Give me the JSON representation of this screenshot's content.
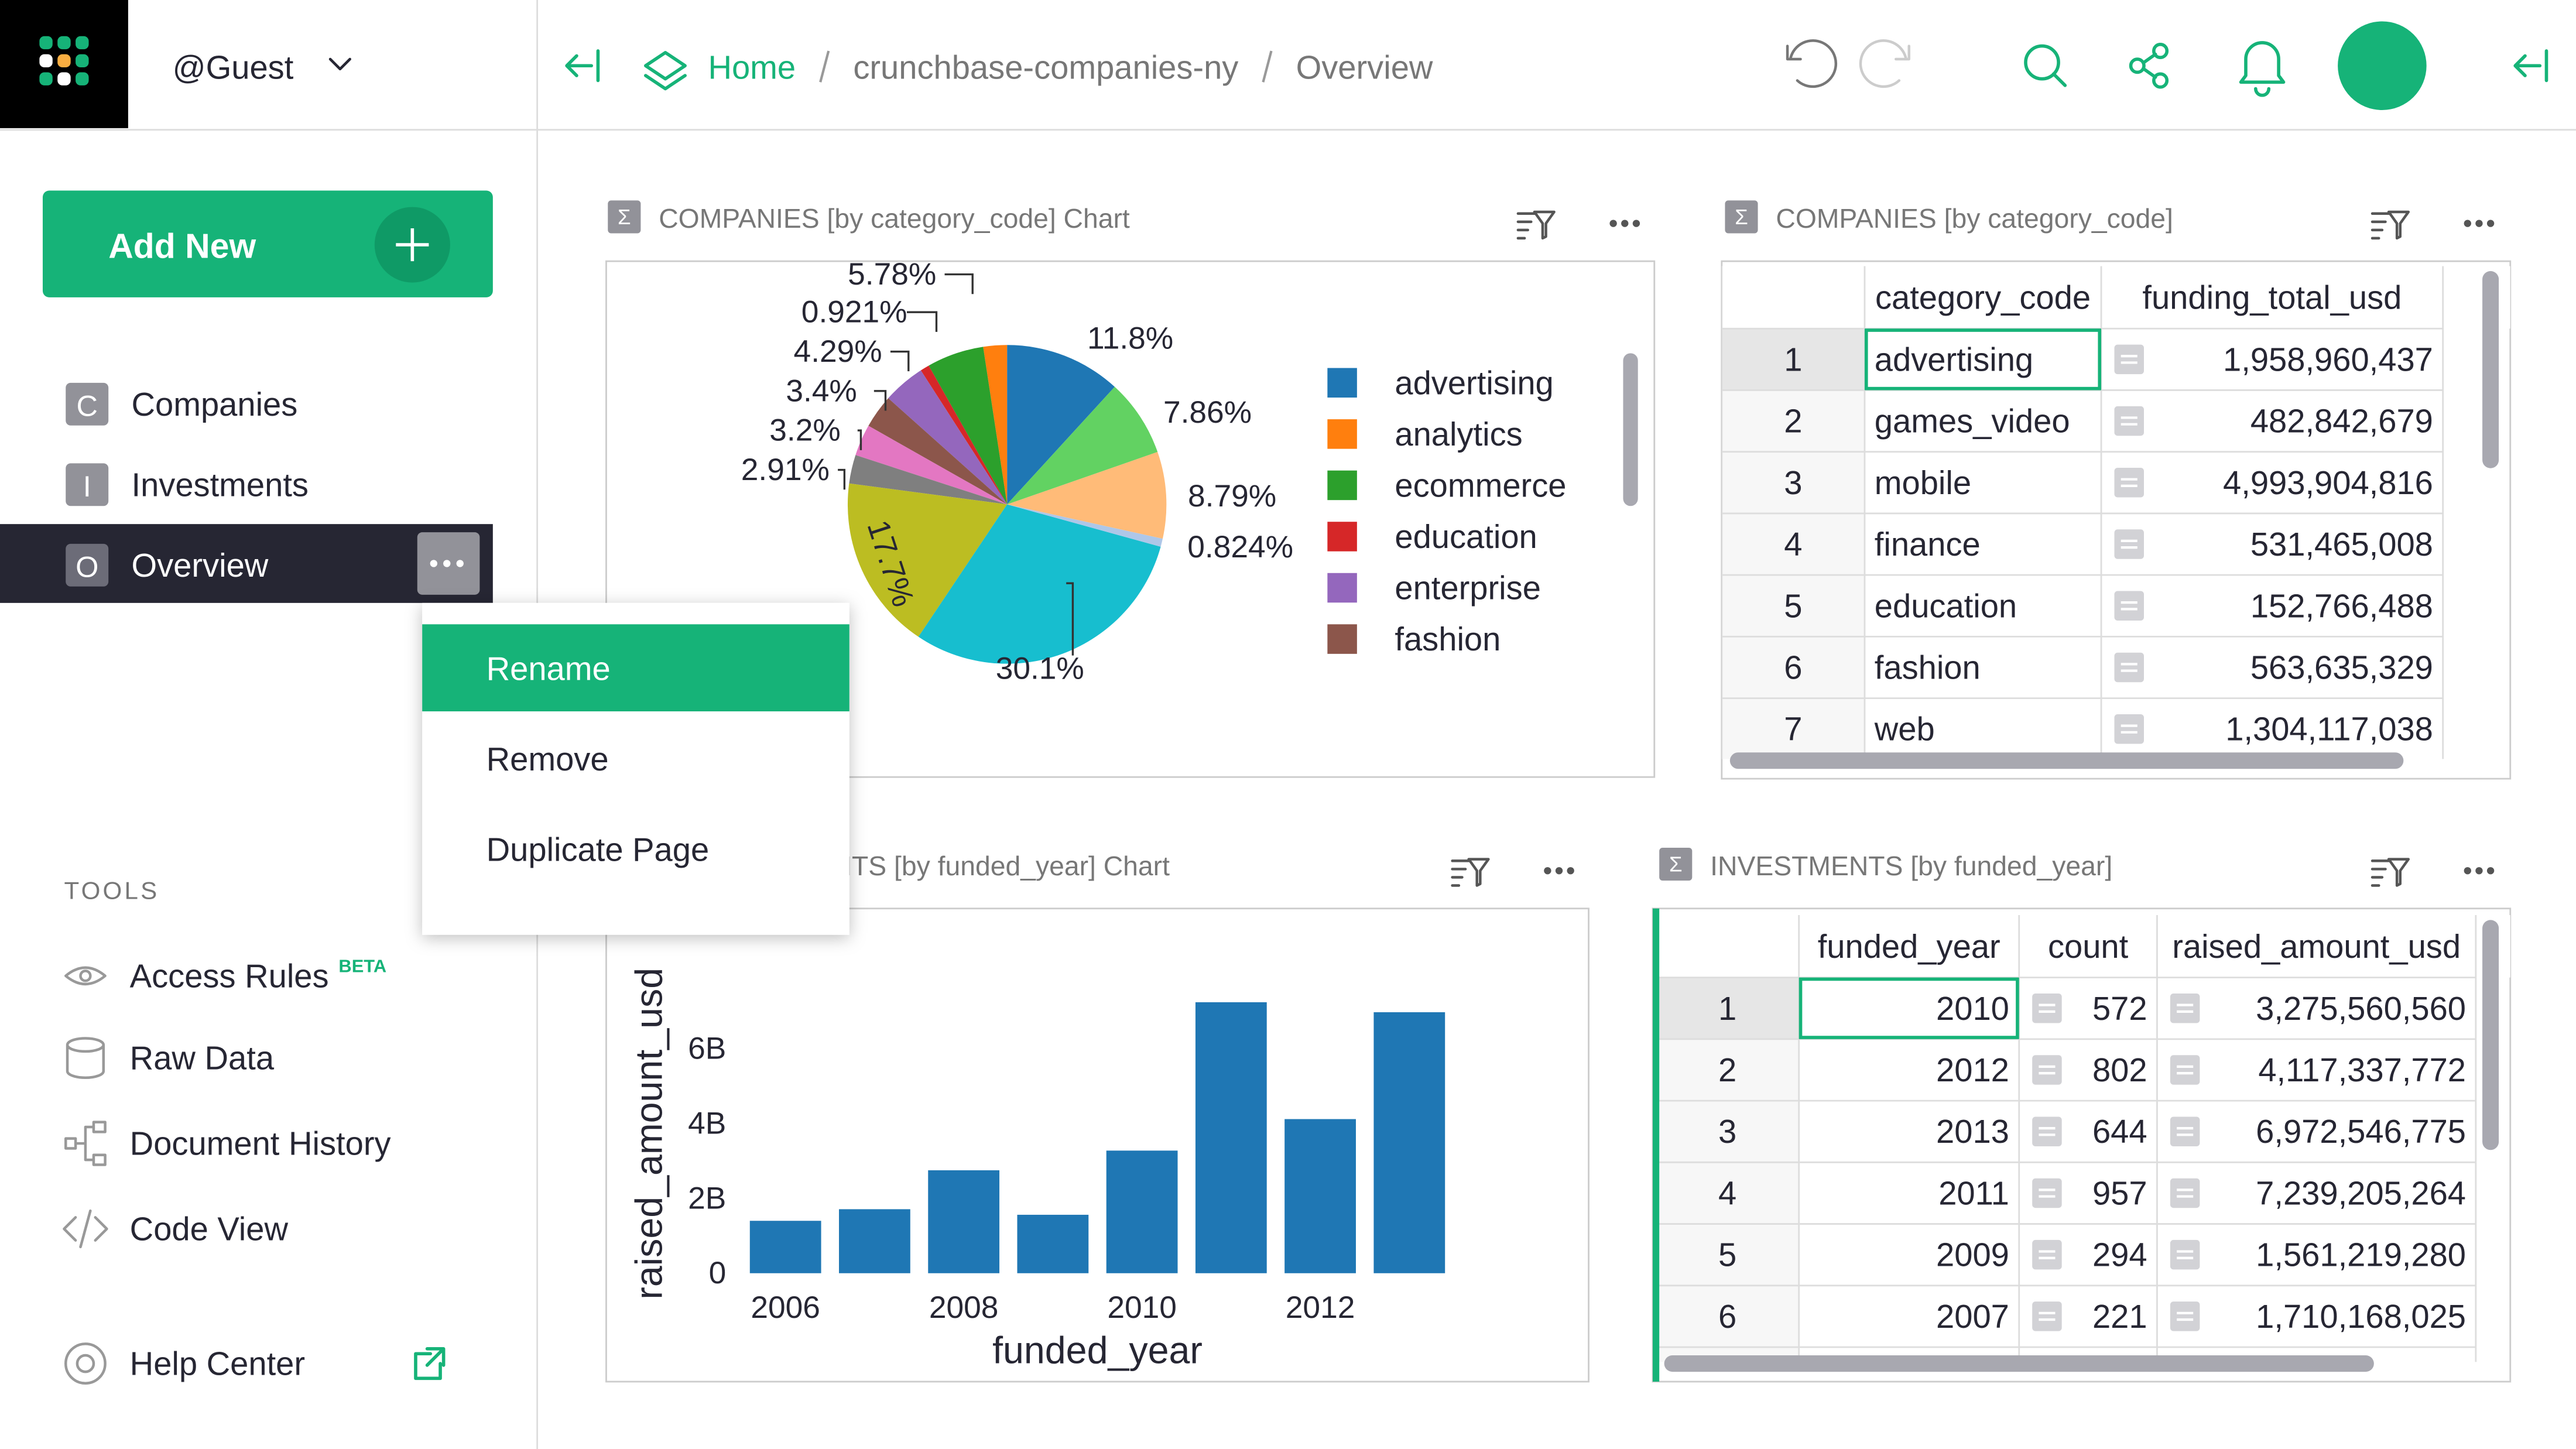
{
  "header": {
    "user": "@Guest",
    "breadcrumb": [
      "Home",
      "crunchbase-companies-ny",
      "Overview"
    ]
  },
  "sidebar": {
    "add_new": "Add New",
    "pages": [
      {
        "icon": "C",
        "label": "Companies"
      },
      {
        "icon": "I",
        "label": "Investments"
      },
      {
        "icon": "O",
        "label": "Overview"
      }
    ],
    "tools_title": "TOOLS",
    "tools": [
      "Access Rules",
      "Raw Data",
      "Document History",
      "Code View"
    ],
    "tools_badge": "BETA",
    "help": "Help Center"
  },
  "context_menu": {
    "items": [
      "Rename",
      "Remove",
      "Duplicate Page"
    ]
  },
  "widgets": [
    {
      "title": "COMPANIES [by category_code] Chart",
      "chart": {
        "type": "pie",
        "categories": [
          "advertising",
          "analytics",
          "ecommerce",
          "education",
          "enterprise",
          "fashion",
          null,
          null,
          null,
          null,
          null,
          null,
          null
        ],
        "values": [
          11.8,
          2.4,
          5.78,
          0.921,
          4.29,
          3.4,
          3.2,
          2.91,
          17.7,
          30.1,
          0.824,
          8.79,
          7.86
        ],
        "value_labels": [
          "11.8%",
          null,
          "5.78%",
          "0.921%",
          "4.29%",
          "3.4%",
          "3.2%",
          "2.91%",
          "17.7%",
          "30.1%",
          "0.824%",
          "8.79%",
          "7.86%"
        ],
        "colors": [
          "#1f77b4",
          "#ff7f0e",
          "#2ca02c",
          "#d62728",
          "#9467bd",
          "#8c564b",
          "#e377c2",
          "#7f7f7f",
          "#bcbd22",
          "#17becf",
          "#aec7e8",
          "#ffbb78",
          "#62d262"
        ]
      }
    },
    {
      "title": "COMPANIES [by category_code]",
      "table": {
        "columns": [
          "category_code",
          "funding_total_usd"
        ],
        "rows": [
          [
            "1",
            "advertising",
            "1,958,960,437"
          ],
          [
            "2",
            "games_video",
            "482,842,679"
          ],
          [
            "3",
            "mobile",
            "4,993,904,816"
          ],
          [
            "4",
            "finance",
            "531,465,008"
          ],
          [
            "5",
            "education",
            "152,766,488"
          ],
          [
            "6",
            "fashion",
            "563,635,329"
          ],
          [
            "7",
            "web",
            "1,304,117,038"
          ]
        ]
      }
    },
    {
      "title": "INVESTMENTS [by funded_year] Chart",
      "chart": {
        "type": "bar",
        "x": [
          2006,
          2007,
          2008,
          2009,
          2010,
          2011,
          2012,
          2013
        ],
        "values": [
          1400000000,
          1710168025,
          2750000000,
          1561219280,
          3275560560,
          7239205264,
          4117337772,
          6972546775
        ],
        "color": "#1f77b4",
        "xlabel": "funded_year",
        "ylabel": "raised_amount_usd",
        "xlim": [
          2005.5,
          2013.5
        ],
        "xticks": [
          2006,
          2008,
          2010,
          2012
        ],
        "ylim": [
          0,
          7900000000
        ],
        "yticks": [
          0,
          {
            "value": 2000000000,
            "label": "2B"
          },
          {
            "value": 4000000000,
            "label": "4B"
          },
          {
            "value": 6000000000,
            "label": "6B"
          }
        ]
      }
    },
    {
      "title": "INVESTMENTS [by funded_year]",
      "table": {
        "columns": [
          "funded_year",
          "count",
          "raised_amount_usd"
        ],
        "rows": [
          [
            "1",
            "2010",
            "572",
            "3,275,560,560"
          ],
          [
            "2",
            "2012",
            "802",
            "4,117,337,772"
          ],
          [
            "3",
            "2013",
            "644",
            "6,972,546,775"
          ],
          [
            "4",
            "2011",
            "957",
            "7,239,205,264"
          ],
          [
            "5",
            "2009",
            "294",
            "1,561,219,280"
          ],
          [
            "6",
            "2007",
            "221",
            "1,710,168,025"
          ]
        ]
      }
    }
  ]
}
